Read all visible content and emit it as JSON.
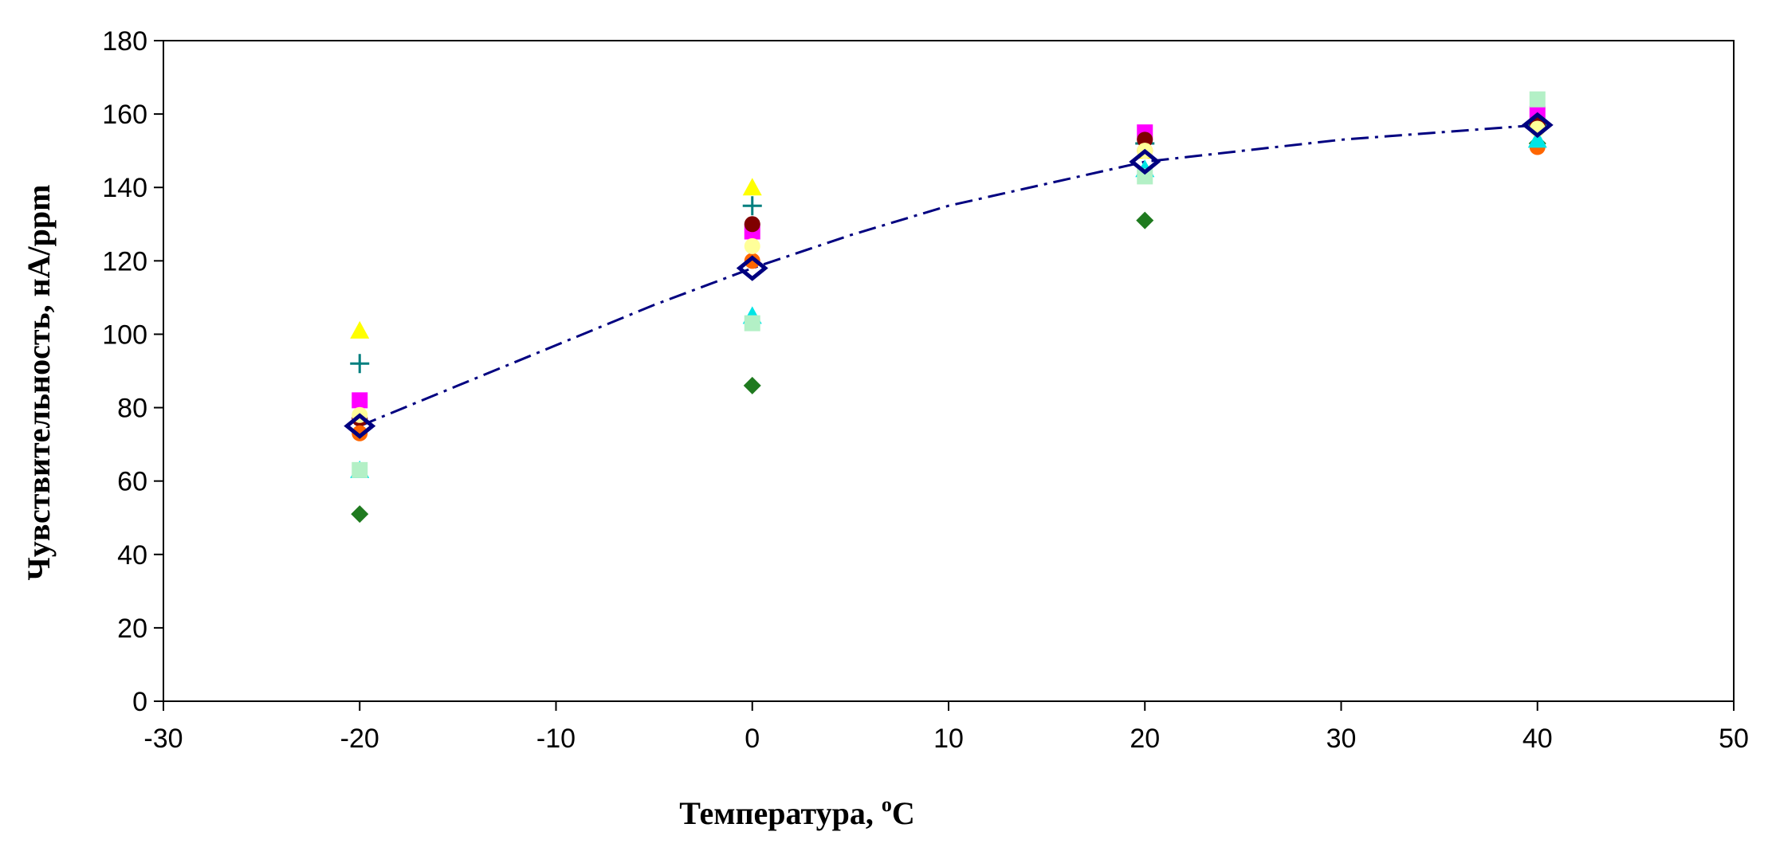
{
  "chart_data": {
    "type": "scatter",
    "title": "",
    "xlabel": "Температура, ",
    "xlabel_sup": "o",
    "xlabel_unit": "C",
    "ylabel": "Чувствительность,  нА/ppm",
    "xlim": [
      -30,
      50
    ],
    "ylim": [
      0,
      180
    ],
    "x_ticks": [
      "-30",
      "-10",
      "0",
      "10",
      "20",
      "30",
      "40",
      "50",
      "-20"
    ],
    "x_tick_values": [
      -30,
      -10,
      0,
      10,
      20,
      30,
      40,
      50,
      -20
    ],
    "y_ticks": [
      "0",
      "20",
      "40",
      "60",
      "80",
      "100",
      "120",
      "140",
      "160",
      "180"
    ],
    "y_tick_values": [
      0,
      20,
      40,
      60,
      80,
      100,
      120,
      140,
      160,
      180
    ],
    "grid": false,
    "legend": "none",
    "series": [
      {
        "marker": "diamond",
        "color": "#1f7a1f",
        "x": [
          -20,
          0,
          20,
          40
        ],
        "y": [
          51,
          86,
          131,
          152
        ]
      },
      {
        "marker": "triangle",
        "color": "#ffff00",
        "x": [
          -20,
          0,
          20,
          40
        ],
        "y": [
          101,
          140,
          150,
          159
        ]
      },
      {
        "marker": "plus",
        "color": "#007f7f",
        "x": [
          -20,
          0,
          20,
          40
        ],
        "y": [
          92,
          135,
          152,
          157
        ]
      },
      {
        "marker": "square",
        "color": "#ff00ff",
        "x": [
          -20,
          0,
          20,
          40
        ],
        "y": [
          82,
          128,
          155,
          160
        ]
      },
      {
        "marker": "circle",
        "color": "#800000",
        "x": [
          -20,
          0,
          20,
          40
        ],
        "y": [
          77,
          130,
          153,
          157
        ]
      },
      {
        "marker": "circle",
        "color": "#ff6600",
        "x": [
          -20,
          0,
          20,
          40
        ],
        "y": [
          73,
          120,
          150,
          151
        ]
      },
      {
        "marker": "triangle",
        "color": "#00e5e5",
        "x": [
          -20,
          0,
          20,
          40
        ],
        "y": [
          63,
          105,
          145,
          153
        ]
      },
      {
        "marker": "square",
        "color": "#b3f0c6",
        "x": [
          -20,
          0,
          20,
          40
        ],
        "y": [
          63,
          103,
          143,
          164
        ]
      },
      {
        "marker": "circle",
        "color": "#ffff99",
        "x": [
          -20,
          0,
          20,
          40
        ],
        "y": [
          78,
          124,
          150,
          156
        ]
      },
      {
        "marker": "diamond-open",
        "color": "#000080",
        "x": [
          -20,
          0,
          20,
          40
        ],
        "y": [
          75,
          118,
          147,
          157
        ]
      }
    ],
    "trendline": {
      "style": "dash-dot",
      "color": "#000080",
      "x": [
        -20,
        -15,
        -10,
        -5,
        0,
        5,
        10,
        15,
        20,
        25,
        30,
        35,
        40
      ],
      "y": [
        75,
        86,
        97,
        108,
        118,
        127,
        135,
        141,
        147,
        150,
        153,
        155,
        157
      ]
    }
  }
}
